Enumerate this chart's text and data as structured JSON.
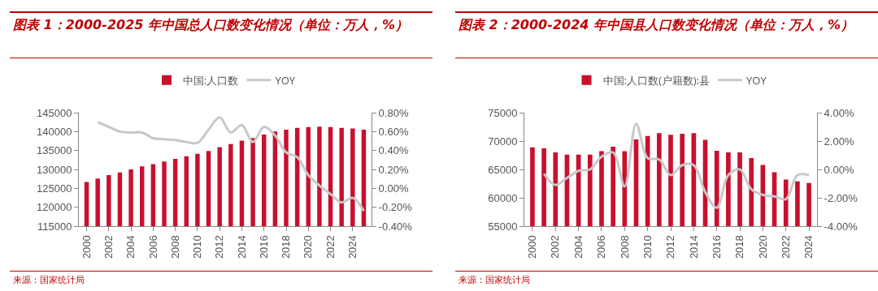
{
  "chart_data": [
    {
      "type": "bar",
      "title": "图表 1：2000-2025 年中国总人口数变化情况（单位：万人，%）",
      "categories": [
        "2000",
        null,
        "2002",
        null,
        "2004",
        null,
        "2006",
        null,
        "2008",
        null,
        "2010",
        null,
        "2012",
        null,
        "2014",
        null,
        "2016",
        null,
        "2018",
        null,
        "2020",
        null,
        "2022",
        null,
        "2024",
        null
      ],
      "series": [
        {
          "name": "中国:人口数",
          "color": "#c8102e",
          "values": [
            126700,
            127600,
            128500,
            129200,
            130000,
            130800,
            131400,
            132100,
            132800,
            133500,
            134100,
            134900,
            135900,
            136700,
            137600,
            138300,
            139200,
            140000,
            140500,
            141000,
            141200,
            141300,
            141200,
            141000,
            140800,
            140500
          ]
        },
        {
          "name": "YOY",
          "type": "line",
          "axis": "y2",
          "color": "#c8c8c8",
          "values": [
            null,
            0.7,
            0.65,
            0.6,
            0.59,
            0.59,
            0.53,
            0.52,
            0.51,
            0.49,
            0.48,
            0.62,
            0.75,
            0.59,
            0.67,
            0.49,
            0.65,
            0.56,
            0.38,
            0.33,
            0.14,
            0.03,
            -0.06,
            -0.15,
            -0.1,
            -0.24
          ]
        }
      ],
      "ylim": [
        115000,
        145000
      ],
      "yticks": [
        115000,
        120000,
        125000,
        130000,
        135000,
        140000,
        145000
      ],
      "y2lim": [
        -0.4,
        0.8
      ],
      "y2ticks": [
        {
          "value": -0.4,
          "label": "-0.40%"
        },
        {
          "value": -0.2,
          "label": "-0.20%"
        },
        {
          "value": 0,
          "label": "0.00%"
        },
        {
          "value": 0.2,
          "label": "0.20%"
        },
        {
          "value": 0.4,
          "label": "0.40%"
        },
        {
          "value": 0.6,
          "label": "0.60%"
        },
        {
          "value": 0.8,
          "label": "0.80%"
        }
      ],
      "legend": "top",
      "grid": false,
      "annotations": [
        "来源：国家统计局"
      ]
    },
    {
      "type": "bar",
      "title": "图表 2：2000-2024 年中国县人口数变化情况（单位：万人，%）",
      "categories": [
        "2000",
        null,
        "2002",
        null,
        "2004",
        null,
        "2006",
        null,
        "2008",
        null,
        "2010",
        null,
        "2012",
        null,
        "2014",
        null,
        "2016",
        null,
        "2018",
        null,
        "2020",
        null,
        "2022",
        null,
        "2024"
      ],
      "series": [
        {
          "name": "中国:人口数(户籍数):县",
          "color": "#c8102e",
          "values": [
            68900,
            68700,
            68000,
            67600,
            67600,
            67600,
            68200,
            69000,
            68200,
            70300,
            70900,
            71400,
            71100,
            71300,
            71400,
            70200,
            68300,
            68000,
            68000,
            67000,
            65800,
            64500,
            63200,
            62900,
            62600
          ]
        },
        {
          "name": "YOY",
          "type": "line",
          "axis": "y2",
          "color": "#c8c8c8",
          "values": [
            null,
            -0.3,
            -1.1,
            -0.6,
            -0.1,
            0.0,
            0.9,
            1.2,
            -1.2,
            3.2,
            0.8,
            0.7,
            -0.4,
            0.3,
            0.3,
            -1.6,
            -2.7,
            -0.4,
            0.0,
            -1.4,
            -1.8,
            -1.9,
            -2.1,
            -0.4,
            -0.4
          ]
        }
      ],
      "ylim": [
        55000,
        75000
      ],
      "yticks": [
        55000,
        60000,
        65000,
        70000,
        75000
      ],
      "y2lim": [
        -4,
        4
      ],
      "y2ticks": [
        {
          "value": -4,
          "label": "-4.00%"
        },
        {
          "value": -2,
          "label": "-2.00%"
        },
        {
          "value": 0,
          "label": "0.00%"
        },
        {
          "value": 2,
          "label": "2.00%"
        },
        {
          "value": 4,
          "label": "4.00%"
        }
      ],
      "legend": "top",
      "grid": false,
      "annotations": [
        "来源：国家统计局"
      ]
    }
  ]
}
